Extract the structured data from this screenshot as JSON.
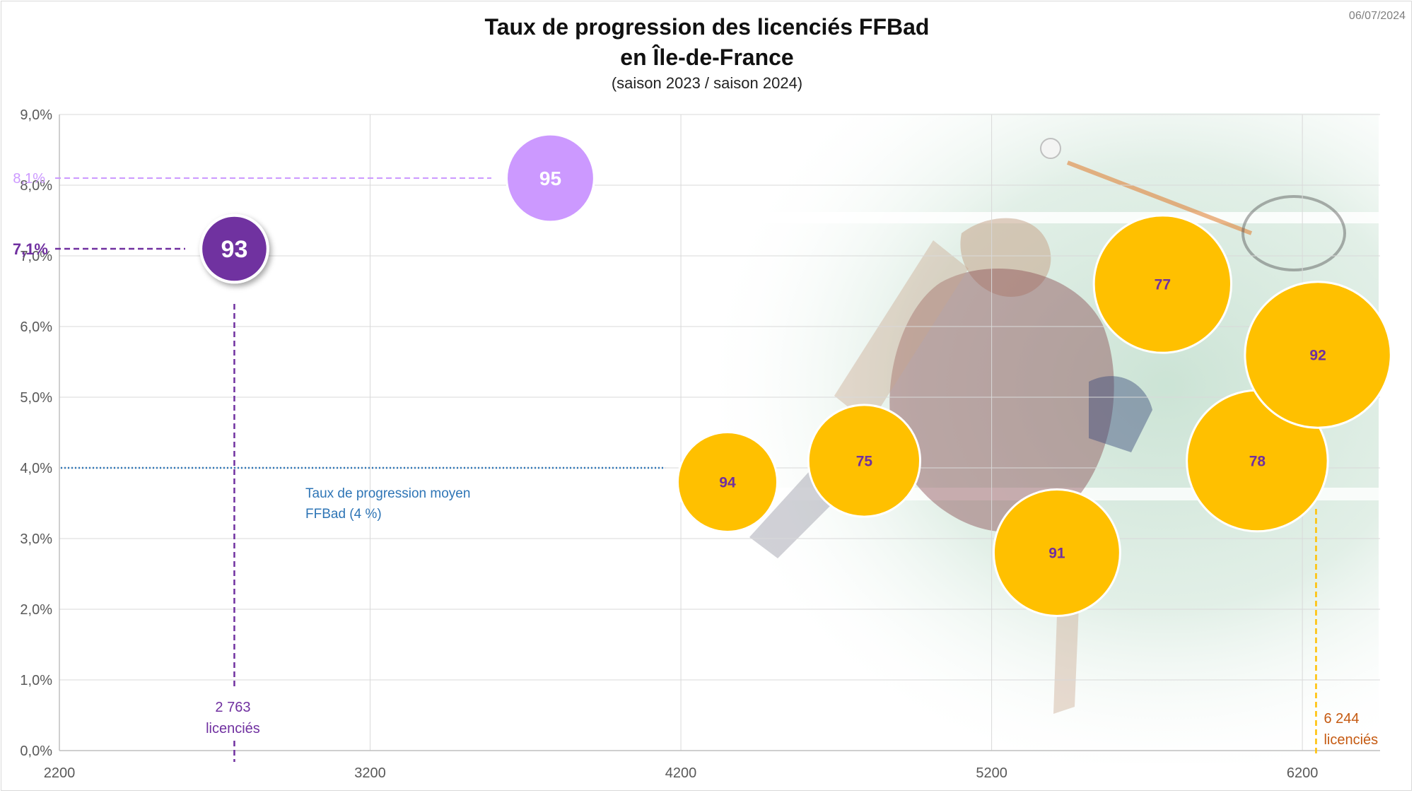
{
  "header": {
    "title_line1": "Taux de progression des licenciés FFBad",
    "title_line2": "en Île-de-France",
    "subtitle": "(saison 2023 / saison 2024)",
    "date": "06/07/2024"
  },
  "colors": {
    "highlight_dark": "#7030a0",
    "highlight_light": "#cc99ff",
    "others": "#ffc000",
    "average_line": "#2e75b6",
    "max_line": "#ffc000"
  },
  "chart_data": {
    "type": "scatter",
    "subtype": "bubble",
    "xlim": [
      2200,
      6450
    ],
    "ylim": [
      0,
      9
    ],
    "x_ticks": [
      2200,
      3200,
      4200,
      5200,
      6200
    ],
    "y_ticks": [
      "0,0%",
      "1,0%",
      "2,0%",
      "3,0%",
      "4,0%",
      "5,0%",
      "6,0%",
      "7,0%",
      "8,0%",
      "9,0%"
    ],
    "grid": true,
    "points": [
      {
        "label": "93",
        "x": 2763,
        "y": 7.1,
        "color": "#7030a0"
      },
      {
        "label": "95",
        "x": 3780,
        "y": 8.1,
        "color": "#cc99ff"
      },
      {
        "label": "94",
        "x": 4350,
        "y": 3.8,
        "color": "#ffc000"
      },
      {
        "label": "75",
        "x": 4790,
        "y": 4.1,
        "color": "#ffc000"
      },
      {
        "label": "91",
        "x": 5410,
        "y": 2.8,
        "color": "#ffc000"
      },
      {
        "label": "77",
        "x": 5750,
        "y": 6.6,
        "color": "#ffc000"
      },
      {
        "label": "78",
        "x": 6055,
        "y": 4.1,
        "color": "#ffc000"
      },
      {
        "label": "92",
        "x": 6250,
        "y": 5.6,
        "color": "#ffc000"
      }
    ],
    "bubble_size_relative": [
      0.55,
      0.72,
      0.82,
      0.92,
      1.04,
      1.13,
      1.16,
      1.2
    ],
    "reference_lines": {
      "average": {
        "y": 4.0,
        "label_line1": "Taux de progression moyen",
        "label_line2": "FFBad (4 %)"
      },
      "highlight_93": {
        "y": 7.1,
        "y_label": "7,1%",
        "x": 2763,
        "x_label_line1": "2 763",
        "x_label_line2": "licenciés"
      },
      "highlight_95": {
        "y": 8.1,
        "y_label": "8,1%"
      },
      "max": {
        "x": 6244,
        "x_label_line1": "6 244",
        "x_label_line2": "licenciés"
      }
    }
  }
}
